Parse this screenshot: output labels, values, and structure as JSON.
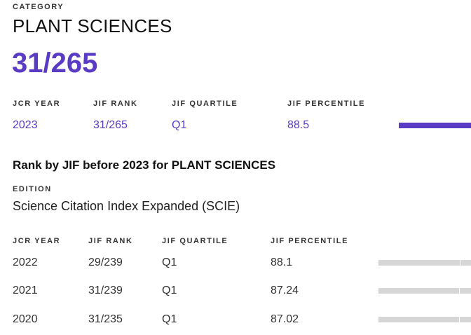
{
  "header": {
    "category_label": "CATEGORY",
    "category_name": "PLANT SCIENCES",
    "rank": "31/265"
  },
  "current": {
    "headers": [
      "JCR YEAR",
      "JIF RANK",
      "JIF QUARTILE",
      "JIF PERCENTILE"
    ],
    "year": "2023",
    "rank": "31/265",
    "quartile": "Q1",
    "percentile": "88.5",
    "percentile_value": 88.5,
    "accent_color": "#5a3bc4"
  },
  "history": {
    "title": "Rank by JIF before 2023 for PLANT SCIENCES",
    "edition_label": "EDITION",
    "edition_value": "Science Citation Index Expanded (SCIE)",
    "headers": [
      "JCR YEAR",
      "JIF RANK",
      "JIF QUARTILE",
      "JIF PERCENTILE"
    ],
    "rows": [
      {
        "year": "2022",
        "rank": "29/239",
        "quartile": "Q1",
        "percentile": "88.1",
        "percentile_value": 88.1
      },
      {
        "year": "2021",
        "rank": "31/239",
        "quartile": "Q1",
        "percentile": "87.24",
        "percentile_value": 87.24
      },
      {
        "year": "2020",
        "rank": "31/235",
        "quartile": "Q1",
        "percentile": "87.02",
        "percentile_value": 87.02
      }
    ]
  }
}
